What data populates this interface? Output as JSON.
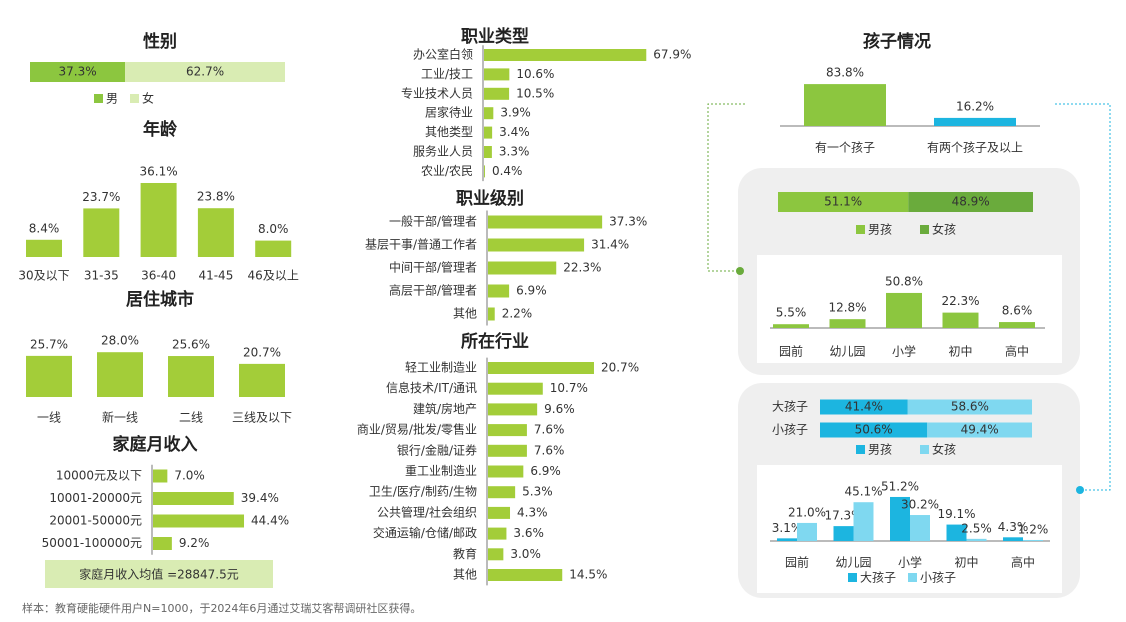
{
  "chart_data": [
    {
      "type": "stacked",
      "title": "性别",
      "series": [
        {
          "name": "男",
          "color": "#8cc63f",
          "values": [
            37.3
          ],
          "value_labels": [
            "37.3%"
          ]
        },
        {
          "name": "女",
          "color": "#d9ecb3",
          "values": [
            62.7
          ],
          "value_labels": [
            "62.7%"
          ]
        }
      ]
    },
    {
      "type": "vbar",
      "title": "年龄",
      "color": "#a3cd39",
      "categories": [
        "30及以下",
        "31-35",
        "36-40",
        "41-45",
        "46及以上"
      ],
      "values": [
        8.4,
        23.7,
        36.1,
        23.8,
        8.0
      ],
      "value_labels": [
        "8.4%",
        "23.7%",
        "36.1%",
        "23.8%",
        "8.0%"
      ]
    },
    {
      "type": "vbar",
      "title": "居住城市",
      "color": "#a3cd39",
      "categories": [
        "一线",
        "新一线",
        "二线",
        "三线及以下"
      ],
      "values": [
        25.7,
        28.0,
        25.6,
        20.7
      ],
      "value_labels": [
        "25.7%",
        "28.0%",
        "25.6%",
        "20.7%"
      ]
    },
    {
      "type": "hbar",
      "title": "家庭月收入",
      "color": "#a3cd39",
      "categories": [
        "10000元及以下",
        "10001-20000元",
        "20001-50000元",
        "50001-100000元"
      ],
      "values": [
        7.0,
        39.4,
        44.4,
        9.2
      ],
      "value_labels": [
        "7.0%",
        "39.4%",
        "44.4%",
        "9.2%"
      ],
      "annotation": "家庭月收入均值 =28847.5元"
    },
    {
      "type": "hbar",
      "title": "职业类型",
      "color": "#a3cd39",
      "categories": [
        "办公室白领",
        "工业/技工",
        "专业技术人员",
        "居家待业",
        "其他类型",
        "服务业人员",
        "农业/农民"
      ],
      "values": [
        67.9,
        10.6,
        10.5,
        3.9,
        3.4,
        3.3,
        0.4
      ],
      "value_labels": [
        "67.9%",
        "10.6%",
        "10.5%",
        "3.9%",
        "3.4%",
        "3.3%",
        "0.4%"
      ]
    },
    {
      "type": "hbar",
      "title": "职业级别",
      "color": "#a3cd39",
      "categories": [
        "一般干部/管理者",
        "基层干事/普通工作者",
        "中间干部/管理者",
        "高层干部/管理者",
        "其他"
      ],
      "values": [
        37.3,
        31.4,
        22.3,
        6.9,
        2.2
      ],
      "value_labels": [
        "37.3%",
        "31.4%",
        "22.3%",
        "6.9%",
        "2.2%"
      ]
    },
    {
      "type": "hbar",
      "title": "所在行业",
      "color": "#a3cd39",
      "categories": [
        "轻工业制造业",
        "信息技术/IT/通讯",
        "建筑/房地产",
        "商业/贸易/批发/零售业",
        "银行/金融/证券",
        "重工业制造业",
        "卫生/医疗/制药/生物",
        "公共管理/社会组织",
        "交通运输/仓储/邮政",
        "教育",
        "其他"
      ],
      "values": [
        20.7,
        10.7,
        9.6,
        7.6,
        7.6,
        6.9,
        5.3,
        4.3,
        3.6,
        3.0,
        14.5
      ],
      "value_labels": [
        "20.7%",
        "10.7%",
        "9.6%",
        "7.6%",
        "7.6%",
        "6.9%",
        "5.3%",
        "4.3%",
        "3.6%",
        "3.0%",
        "14.5%"
      ]
    },
    {
      "type": "vbar",
      "title": "孩子情况",
      "colors": [
        "#8cc63f",
        "#1cb5e0"
      ],
      "categories": [
        "有一个孩子",
        "有两个孩子及以上"
      ],
      "values": [
        83.8,
        16.2
      ],
      "value_labels": [
        "83.8%",
        "16.2%"
      ]
    },
    {
      "type": "stacked",
      "series": [
        {
          "name": "男孩",
          "color": "#8cc63f",
          "values": [
            51.1
          ],
          "value_labels": [
            "51.1%"
          ]
        },
        {
          "name": "女孩",
          "color": "#6aab3c",
          "values": [
            48.9
          ],
          "value_labels": [
            "48.9%"
          ]
        }
      ]
    },
    {
      "type": "vbar",
      "color": "#8cc63f",
      "categories": [
        "园前",
        "幼儿园",
        "小学",
        "初中",
        "高中"
      ],
      "values": [
        5.5,
        12.8,
        50.8,
        22.3,
        8.6
      ],
      "value_labels": [
        "5.5%",
        "12.8%",
        "50.8%",
        "22.3%",
        "8.6%"
      ]
    },
    {
      "type": "stacked",
      "categories": [
        "大孩子",
        "小孩子"
      ],
      "series": [
        {
          "name": "男孩",
          "color": "#1cb5e0",
          "values": [
            41.4,
            50.6
          ],
          "value_labels": [
            "41.4%",
            "50.6%"
          ]
        },
        {
          "name": "女孩",
          "color": "#7fd8f0",
          "values": [
            58.6,
            49.4
          ],
          "value_labels": [
            "58.6%",
            "49.4%"
          ]
        }
      ]
    },
    {
      "type": "grouped",
      "categories": [
        "园前",
        "幼儿园",
        "小学",
        "初中",
        "高中"
      ],
      "series": [
        {
          "name": "大孩子",
          "color": "#1cb5e0",
          "values": [
            3.1,
            17.3,
            51.2,
            19.1,
            4.3
          ],
          "value_labels": [
            "3.1%",
            "17.3%",
            "51.2%",
            "19.1%",
            "4.3%"
          ]
        },
        {
          "name": "小孩子",
          "color": "#7fd8f0",
          "values": [
            21.0,
            45.1,
            30.2,
            2.5,
            1.2
          ],
          "value_labels": [
            "21.0%",
            "45.1%",
            "30.2%",
            "2.5%",
            "1.2%"
          ]
        }
      ]
    }
  ],
  "footnote": "样本：教育硬能硬件用户N=1000，于2024年6月通过艾瑞艾客帮调研社区获得。"
}
